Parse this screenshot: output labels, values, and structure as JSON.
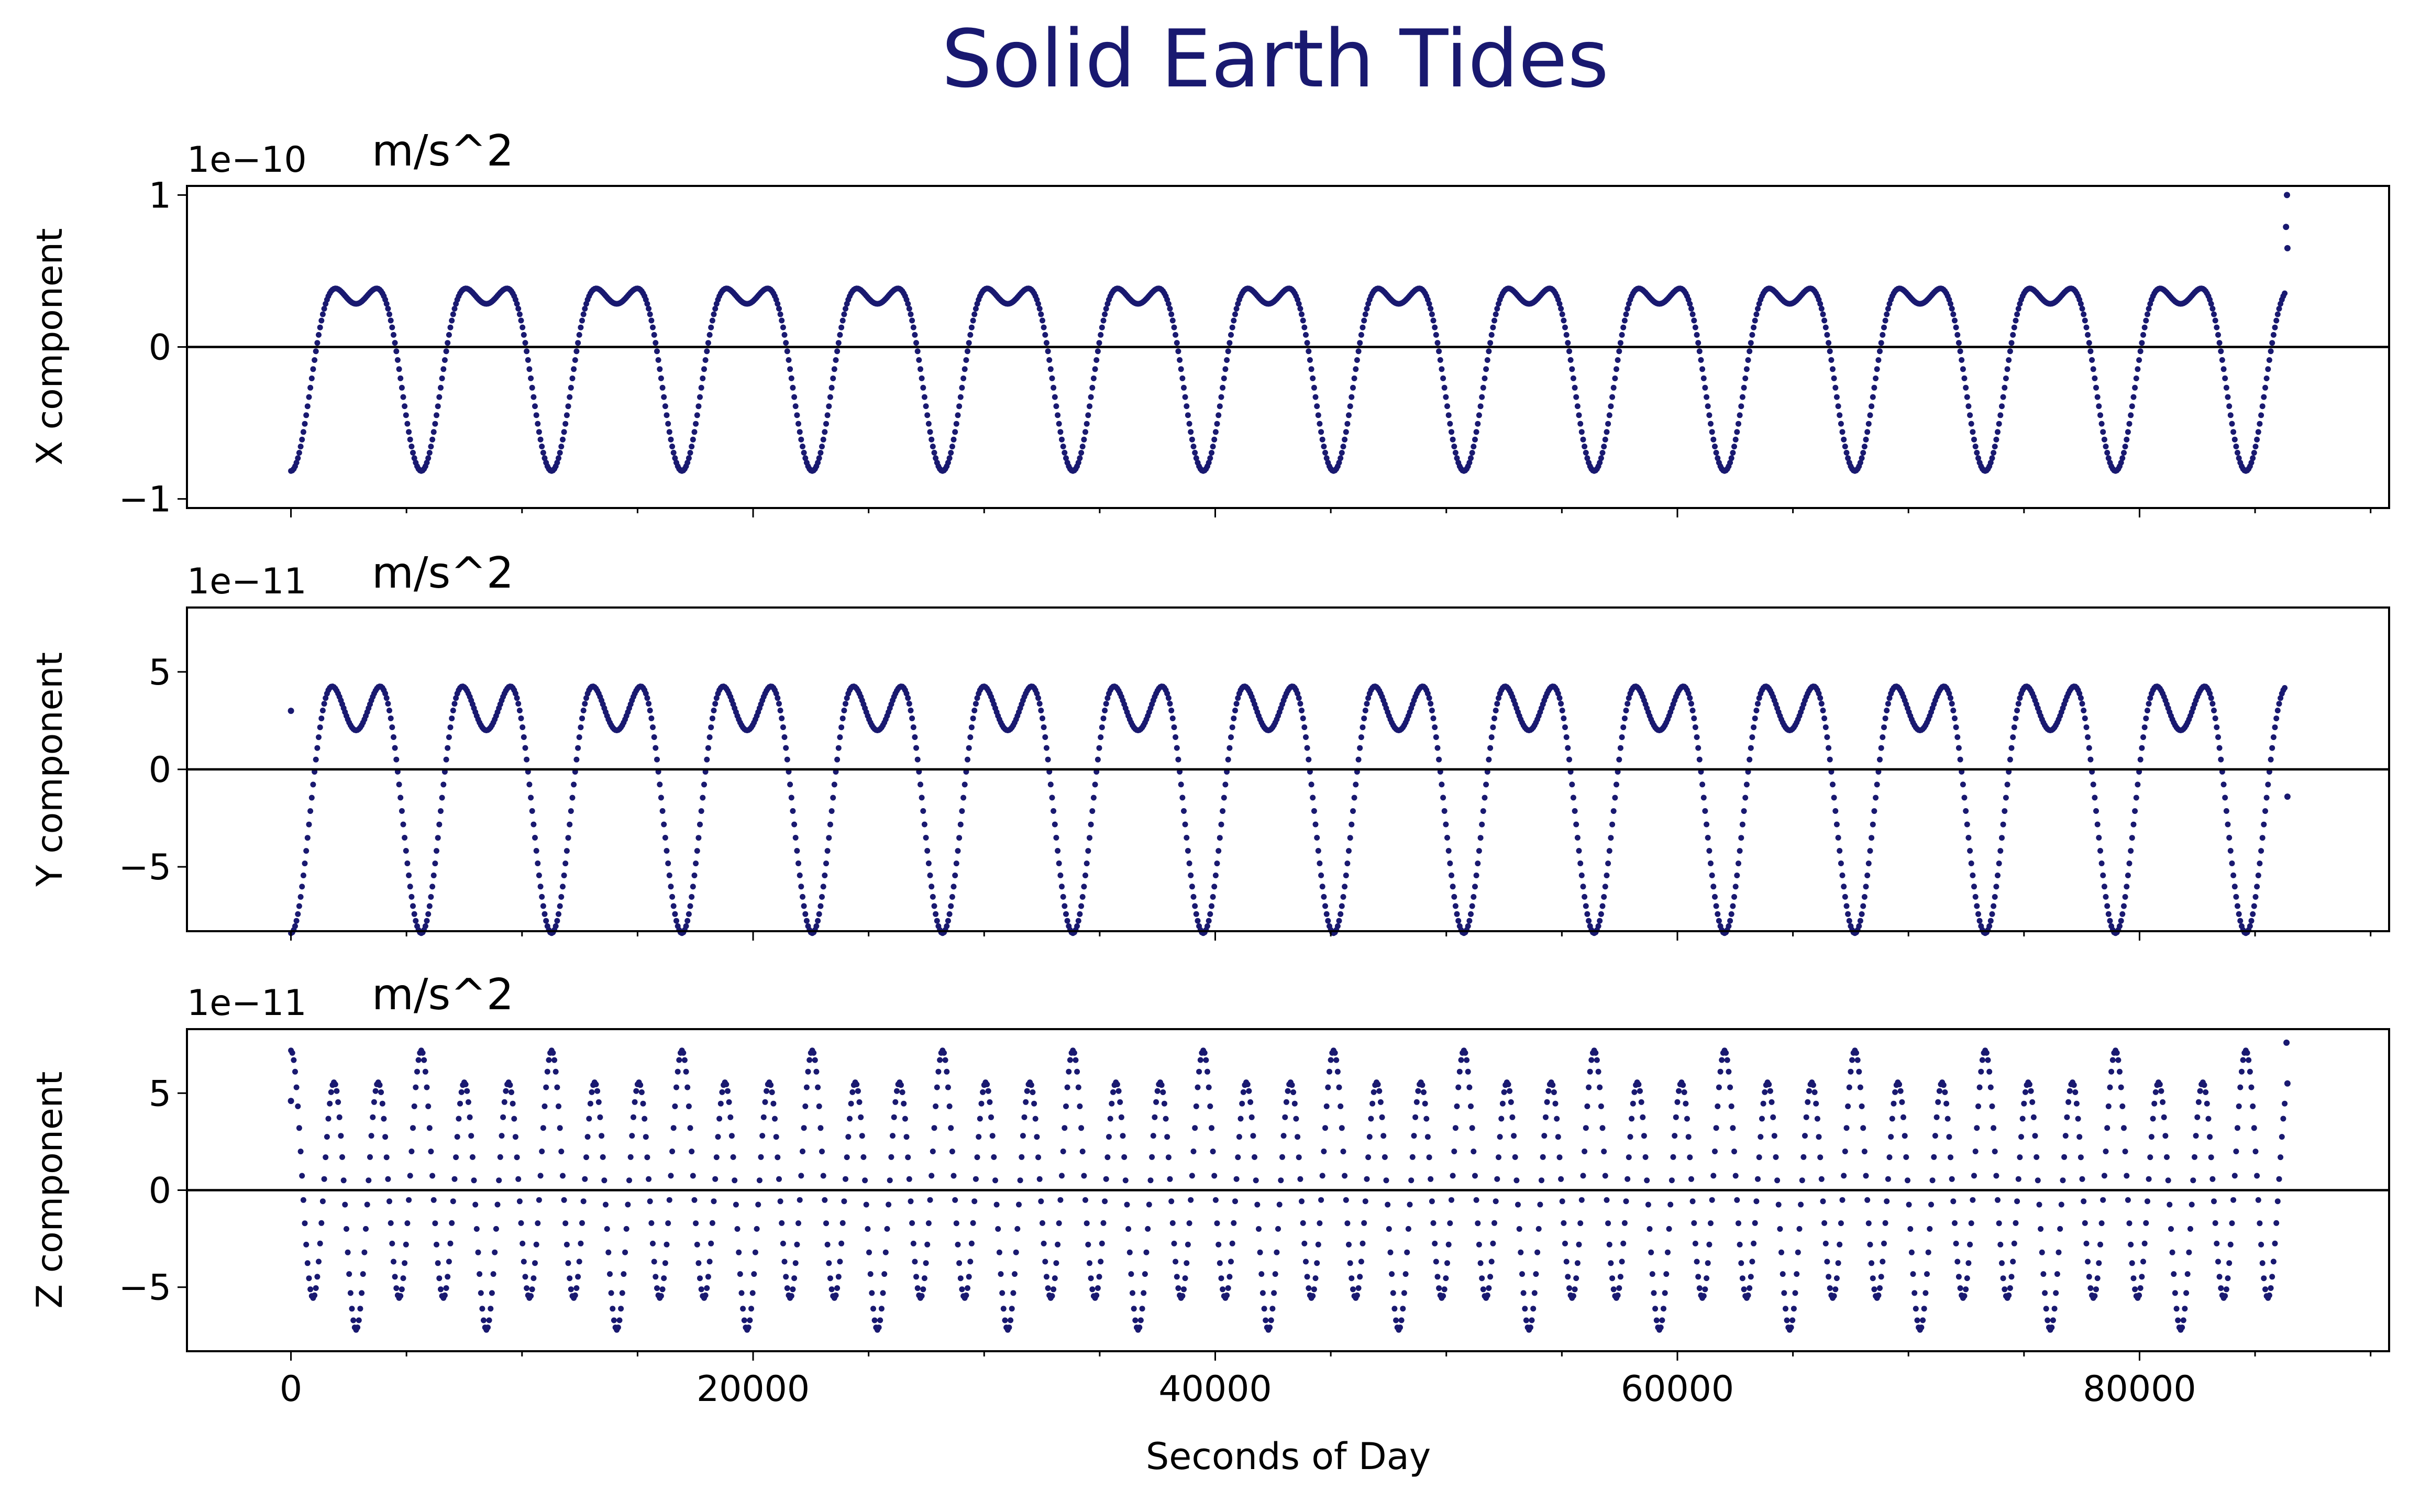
{
  "figure": {
    "title": "Solid Earth Tides",
    "title_color": "#191970",
    "xlabel": "Seconds of Day",
    "series_color": "#191970",
    "zero_line_color": "#000000"
  },
  "chart_data": [
    {
      "type": "scatter",
      "ylabel": "X component",
      "offset_text": "1e−10",
      "unit_label": "m/s^2",
      "xlim": [
        -4500,
        90800
      ],
      "ylim": [
        -1.06,
        1.06
      ],
      "xticks": [
        0,
        20000,
        40000,
        60000,
        80000
      ],
      "xtick_labels": [
        "",
        "",
        "",
        "",
        ""
      ],
      "yticks": [
        -1,
        0,
        1
      ],
      "ytick_labels": [
        "−1",
        "0",
        "1"
      ],
      "zero_line": true,
      "step_seconds": 60,
      "x_range": [
        0,
        86400
      ],
      "model": {
        "offset": -0.016,
        "components": [
          {
            "amp": 0.55,
            "period_s": 5640,
            "phase": -1.571
          },
          {
            "amp": 0.25,
            "period_s": 2820,
            "phase": -1.571
          }
        ]
      },
      "endpoints": [
        [
          86340,
          0.79
        ],
        [
          86380,
          1.0
        ],
        [
          86400,
          0.65
        ]
      ]
    },
    {
      "type": "scatter",
      "ylabel": "Y component",
      "offset_text": "1e−11",
      "unit_label": "m/s^2",
      "xlim": [
        -4500,
        90800
      ],
      "ylim": [
        -8.3,
        8.3
      ],
      "xticks": [
        0,
        20000,
        40000,
        60000,
        80000
      ],
      "xtick_labels": [
        "",
        "",
        "",
        "",
        ""
      ],
      "yticks": [
        -5,
        0,
        5
      ],
      "ytick_labels": [
        "−5",
        "0",
        "5"
      ],
      "zero_line": true,
      "step_seconds": 60,
      "x_range": [
        0,
        86400
      ],
      "model": {
        "offset": 0.0,
        "components": [
          {
            "amp": 5.2,
            "period_s": 5640,
            "phase": -1.571
          },
          {
            "amp": 3.2,
            "period_s": 2820,
            "phase": -1.571
          }
        ]
      },
      "endpoints": [
        [
          0,
          3.0
        ],
        [
          86400,
          -1.4
        ]
      ]
    },
    {
      "type": "scatter",
      "ylabel": "Z component",
      "offset_text": "1e−11",
      "unit_label": "m/s^2",
      "xlim": [
        -4500,
        90800
      ],
      "ylim": [
        -8.3,
        8.3
      ],
      "xticks": [
        0,
        20000,
        40000,
        60000,
        80000
      ],
      "xtick_labels": [
        "0",
        "20000",
        "40000",
        "60000",
        "80000"
      ],
      "yticks": [
        -5,
        0,
        5
      ],
      "ytick_labels": [
        "−5",
        "0",
        "5"
      ],
      "zero_line": true,
      "step_seconds": 60,
      "x_range": [
        0,
        86400
      ],
      "model": {
        "offset": 0.0,
        "components": [
          {
            "amp": 6.1,
            "period_s": 1880,
            "phase": 1.571
          },
          {
            "amp": 1.1,
            "period_s": 5640,
            "phase": 1.571
          }
        ]
      },
      "endpoints": [
        [
          0,
          4.6
        ],
        [
          86360,
          7.6
        ],
        [
          86400,
          5.5
        ]
      ]
    }
  ]
}
